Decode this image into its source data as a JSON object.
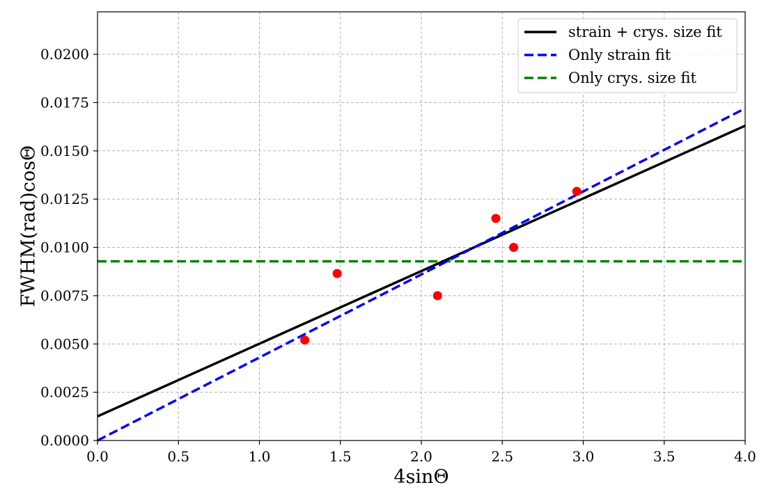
{
  "chart_data": {
    "type": "scatter",
    "title": "",
    "xlabel": "4sinΘ",
    "ylabel": "FWHM(rad)cosΘ",
    "xlim": [
      0.0,
      4.0
    ],
    "ylim": [
      0.0,
      0.0222
    ],
    "grid": true,
    "legend_position": "top-right",
    "x_ticks": [
      0.0,
      0.5,
      1.0,
      1.5,
      2.0,
      2.5,
      3.0,
      3.5,
      4.0
    ],
    "x_tick_labels": [
      "0.0",
      "0.5",
      "1.0",
      "1.5",
      "2.0",
      "2.5",
      "3.0",
      "3.5",
      "4.0"
    ],
    "y_ticks": [
      0.0,
      0.0025,
      0.005,
      0.0075,
      0.01,
      0.0125,
      0.015,
      0.0175,
      0.02
    ],
    "y_tick_labels": [
      "0.0000",
      "0.0025",
      "0.0050",
      "0.0075",
      "0.0100",
      "0.0125",
      "0.0150",
      "0.0175",
      "0.0200"
    ],
    "points": {
      "color": "#ff0000",
      "x": [
        1.28,
        1.48,
        2.1,
        2.46,
        2.57,
        2.96
      ],
      "y": [
        0.0052,
        0.00865,
        0.0075,
        0.0115,
        0.01,
        0.0129
      ]
    },
    "series": [
      {
        "name": "strain + crys. size fit",
        "color": "#000000",
        "dashed": false,
        "x": [
          0.0,
          4.0
        ],
        "y": [
          0.00125,
          0.0163
        ]
      },
      {
        "name": "Only strain fit",
        "color": "#0000ff",
        "dashed": true,
        "x": [
          0.0,
          4.0
        ],
        "y": [
          0.0,
          0.0172
        ]
      },
      {
        "name": "Only crys. size fit",
        "color": "#008000",
        "dashed": true,
        "x": [
          0.0,
          4.0
        ],
        "y": [
          0.00928,
          0.00928
        ]
      }
    ]
  }
}
